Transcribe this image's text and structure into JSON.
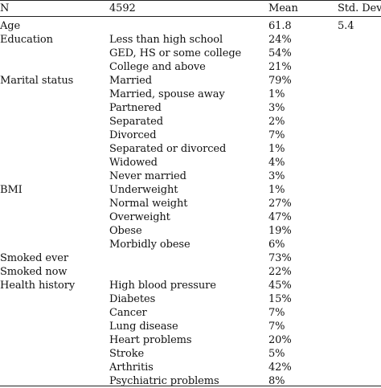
{
  "table": {
    "header": {
      "col0": "N",
      "col1": "4592",
      "col2": "Mean",
      "col3": "Std. Dev."
    },
    "rows": [
      {
        "category": "Age",
        "subcategory": "",
        "mean": "61.8",
        "sd": "5.4"
      },
      {
        "category": "Education",
        "subcategory": "Less than high school",
        "mean": "24%",
        "sd": ""
      },
      {
        "category": "",
        "subcategory": "GED, HS or some college",
        "mean": "54%",
        "sd": ""
      },
      {
        "category": "",
        "subcategory": "College and above",
        "mean": "21%",
        "sd": ""
      },
      {
        "category": "Marital status",
        "subcategory": "Married",
        "mean": "79%",
        "sd": ""
      },
      {
        "category": "",
        "subcategory": "Married, spouse away",
        "mean": "1%",
        "sd": ""
      },
      {
        "category": "",
        "subcategory": "Partnered",
        "mean": "3%",
        "sd": ""
      },
      {
        "category": "",
        "subcategory": "Separated",
        "mean": "2%",
        "sd": ""
      },
      {
        "category": "",
        "subcategory": "Divorced",
        "mean": "7%",
        "sd": ""
      },
      {
        "category": "",
        "subcategory": "Separated or divorced",
        "mean": "1%",
        "sd": ""
      },
      {
        "category": "",
        "subcategory": "Widowed",
        "mean": "4%",
        "sd": ""
      },
      {
        "category": "",
        "subcategory": "Never married",
        "mean": "3%",
        "sd": ""
      },
      {
        "category": "BMI",
        "subcategory": "Underweight",
        "mean": "1%",
        "sd": ""
      },
      {
        "category": "",
        "subcategory": "Normal weight",
        "mean": "27%",
        "sd": ""
      },
      {
        "category": "",
        "subcategory": "Overweight",
        "mean": "47%",
        "sd": ""
      },
      {
        "category": "",
        "subcategory": "Obese",
        "mean": "19%",
        "sd": ""
      },
      {
        "category": "",
        "subcategory": "Morbidly obese",
        "mean": "6%",
        "sd": ""
      },
      {
        "category": "Smoked ever",
        "subcategory": "",
        "mean": "73%",
        "sd": ""
      },
      {
        "category": "Smoked now",
        "subcategory": "",
        "mean": "22%",
        "sd": ""
      },
      {
        "category": "Health history",
        "subcategory": "High blood pressure",
        "mean": "45%",
        "sd": ""
      },
      {
        "category": "",
        "subcategory": "Diabetes",
        "mean": "15%",
        "sd": ""
      },
      {
        "category": "",
        "subcategory": "Cancer",
        "mean": "7%",
        "sd": ""
      },
      {
        "category": "",
        "subcategory": "Lung disease",
        "mean": "7%",
        "sd": ""
      },
      {
        "category": "",
        "subcategory": "Heart problems",
        "mean": "20%",
        "sd": ""
      },
      {
        "category": "",
        "subcategory": "Stroke",
        "mean": "5%",
        "sd": ""
      },
      {
        "category": "",
        "subcategory": "Arthritis",
        "mean": "42%",
        "sd": ""
      },
      {
        "category": "",
        "subcategory": "Psychiatric problems",
        "mean": "8%",
        "sd": ""
      }
    ]
  }
}
